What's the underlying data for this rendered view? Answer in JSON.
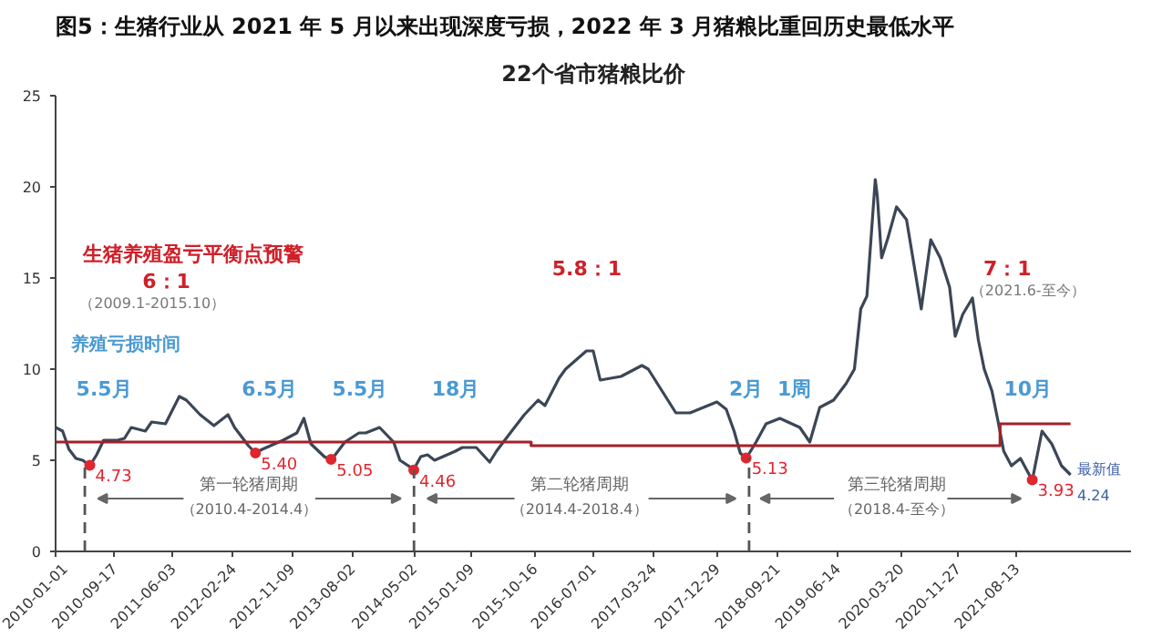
{
  "chart_data": {
    "type": "line",
    "title": "图5：生猪行业从 2021 年 5 月以来出现深度亏损，2022 年 3 月猪粮比重回历史最低水平",
    "subtitle": "22个省市猪粮比价",
    "series": [
      {
        "color": "#3b4656",
        "x": [
          "2010-01",
          "2010-02",
          "2010-03",
          "2010-04",
          "2010-05",
          "2010-06",
          "2010-07",
          "2010-08",
          "2010-10",
          "2010-11",
          "2010-12",
          "2011-02",
          "2011-03",
          "2011-05",
          "2011-07",
          "2011-08",
          "2011-10",
          "2011-12",
          "2012-02",
          "2012-03",
          "2012-05",
          "2012-06",
          "2012-07",
          "2012-10",
          "2012-12",
          "2013-01",
          "2013-02",
          "2013-04",
          "2013-05",
          "2013-07",
          "2013-09",
          "2013-10",
          "2013-12",
          "2014-02",
          "2014-03",
          "2014-05",
          "2014-06",
          "2014-07",
          "2014-08",
          "2014-11",
          "2014-12",
          "2015-02",
          "2015-04",
          "2015-05",
          "2015-07",
          "2015-09",
          "2015-11",
          "2015-12",
          "2016-02",
          "2016-03",
          "2016-06",
          "2016-07",
          "2016-08",
          "2016-11",
          "2017-02",
          "2017-03",
          "2017-05",
          "2017-07",
          "2017-09",
          "2017-12-29",
          "2018-02-08",
          "2018-03-15",
          "2018-04-11",
          "2018-05-07",
          "2018-06-20",
          "2018-08-03",
          "2018-10-03",
          "2018-12-30",
          "2019-02-12",
          "2019-03-28",
          "2019-05-28",
          "2019-07-22",
          "2019-08-28",
          "2019-09-25",
          "2019-10-22",
          "2019-11-28",
          "2019-12-07",
          "2019-12-26",
          "2020-01-23",
          "2020-03-01",
          "2020-04-14",
          "2020-05-24",
          "2020-06-18",
          "2020-07-30",
          "2020-09-10",
          "2020-10-21",
          "2020-11-15",
          "2020-12-18",
          "2021-01-30",
          "2021-02-25",
          "2021-03-23",
          "2021-04-26",
          "2021-05-22",
          "2021-06-17",
          "2021-07-21",
          "2021-08-30",
          "2021-10-21",
          "2021-12-03",
          "2022-01-15",
          "2022-02-27",
          "2022-04-08"
        ],
        "values": [
          6.8,
          6.6,
          5.6,
          5.1,
          5.0,
          4.7,
          5.3,
          6.1,
          6.1,
          6.2,
          6.8,
          6.6,
          7.1,
          7.0,
          8.5,
          8.3,
          7.5,
          6.9,
          7.5,
          6.8,
          5.8,
          5.4,
          5.6,
          6.1,
          6.5,
          7.3,
          5.9,
          5.2,
          5.0,
          6.0,
          6.5,
          6.5,
          6.8,
          6.0,
          5.0,
          4.5,
          5.2,
          5.3,
          5.0,
          5.5,
          5.7,
          5.7,
          4.9,
          5.5,
          6.5,
          7.5,
          8.3,
          8.0,
          9.5,
          10.0,
          11.0,
          11.0,
          9.4,
          9.6,
          10.2,
          10.0,
          8.8,
          7.6,
          7.6,
          8.2,
          7.8,
          6.6,
          5.4,
          5.1,
          6.0,
          7.0,
          7.3,
          6.8,
          6.0,
          7.9,
          8.3,
          9.2,
          10.0,
          13.3,
          14.0,
          20.4,
          19.5,
          16.1,
          17.2,
          18.9,
          18.2,
          15.2,
          13.3,
          17.1,
          16.1,
          14.5,
          11.8,
          13.0,
          13.9,
          11.6,
          10.0,
          8.8,
          7.2,
          5.5,
          4.7,
          5.1,
          3.9,
          6.6,
          5.9,
          4.7,
          4.2
        ]
      },
      {
        "type": "line",
        "color": "#a3202a",
        "x": [
          "2010-01-01",
          "2015-10-01",
          "2015-10-01",
          "2021-06-01",
          "2021-06-01",
          "2022-04-08"
        ],
        "values": [
          6,
          6,
          5.8,
          5.8,
          7,
          7
        ]
      },
      {
        "type": "scatter",
        "color": "#e0262f",
        "x": [
          "2010-06",
          "2012-06",
          "2013-05",
          "2014-05",
          "2018-05-07",
          "2021-10-21"
        ],
        "values": [
          4.73,
          5.4,
          5.05,
          4.46,
          5.13,
          3.93
        ],
        "value_labels": [
          "4.73",
          "5.40",
          "5.05",
          "4.46",
          "5.13",
          "3.93"
        ]
      }
    ],
    "xlim": [
      "2010-01-01",
      "2022-12-31"
    ],
    "xticks": [
      "2010-01-01",
      "2010-09-17",
      "2011-06-03",
      "2012-02-24",
      "2012-11-09",
      "2013-08-02",
      "2014-05-02",
      "2015-01-09",
      "2015-10-16",
      "2016-07-01",
      "2017-03-24",
      "2017-12-29",
      "2018-09-21",
      "2019-06-14",
      "2020-03-20",
      "2020-11-27",
      "2021-08-13"
    ],
    "ylim": [
      0,
      25
    ],
    "yticks": [
      0,
      5,
      10,
      15,
      20,
      25
    ],
    "grid": false,
    "ref_lines": [
      {
        "axis": "x",
        "value": "2010-05-10",
        "line_style": "dashed",
        "color": "#555555"
      },
      {
        "axis": "x",
        "value": "2014-05-02",
        "line_style": "dashed",
        "color": "#555555"
      },
      {
        "axis": "x",
        "value": "2018-05-20",
        "line_style": "dashed",
        "color": "#555555"
      }
    ],
    "annotations": [
      "生猪养殖盈亏平衡点预警",
      "6：1",
      "（2009.1-2015.10）",
      "5.8：1",
      "7：1",
      "（2021.6-至今）",
      "养殖亏损时间",
      "5.5月",
      "6.5月",
      "5.5月",
      "18月",
      "2月",
      "1周",
      "10月",
      "第一轮猪周期",
      "（2010.4-2014.4）",
      "第二轮猪周期",
      "（2014.4-2018.4）",
      "第三轮猪周期",
      "（2018.4-至今）",
      "最新值",
      "4.24"
    ]
  }
}
